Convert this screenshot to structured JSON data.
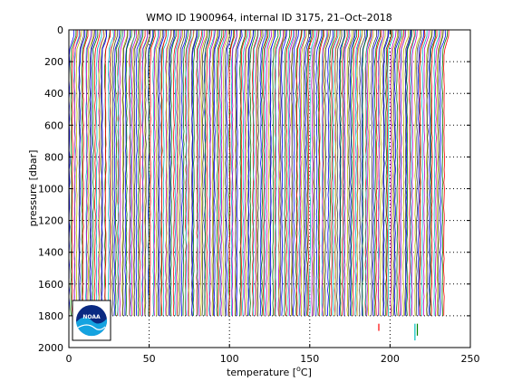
{
  "chart_data": {
    "type": "line",
    "title": "WMO ID 1900964, internal ID 3175, 21–Oct–2018",
    "xlabel_main": "temperature [",
    "xlabel_sup": "o",
    "xlabel_tail": "C]",
    "ylabel": "pressure [dbar]",
    "xlim": [
      0,
      250
    ],
    "ylim": [
      0,
      2000
    ],
    "y_reversed": true,
    "grid": true,
    "grid_style": "dotted",
    "x_ticks": [
      0,
      50,
      100,
      150,
      200,
      250
    ],
    "y_ticks": [
      0,
      200,
      400,
      600,
      800,
      1000,
      1200,
      1400,
      1600,
      1800,
      2000
    ],
    "profile_count": 234,
    "profile_offset_step": 1.0,
    "max_pressure": 1840,
    "series_colors": [
      "#0000ff",
      "#008000",
      "#ff0000",
      "#00bfbf",
      "#bf00bf",
      "#bfbf00",
      "#404040"
    ],
    "outliers": [
      {
        "x": 193,
        "p_top": 1850,
        "p_bottom": 1895,
        "color": "#ff0000"
      },
      {
        "x": 215.5,
        "p_top": 1850,
        "p_bottom": 1955,
        "color": "#00bfbf"
      },
      {
        "x": 217,
        "p_top": 1850,
        "p_bottom": 1925,
        "color": "#008000"
      }
    ]
  },
  "logo": {
    "text": "NOAA",
    "icon": "noaa-logo-icon"
  }
}
